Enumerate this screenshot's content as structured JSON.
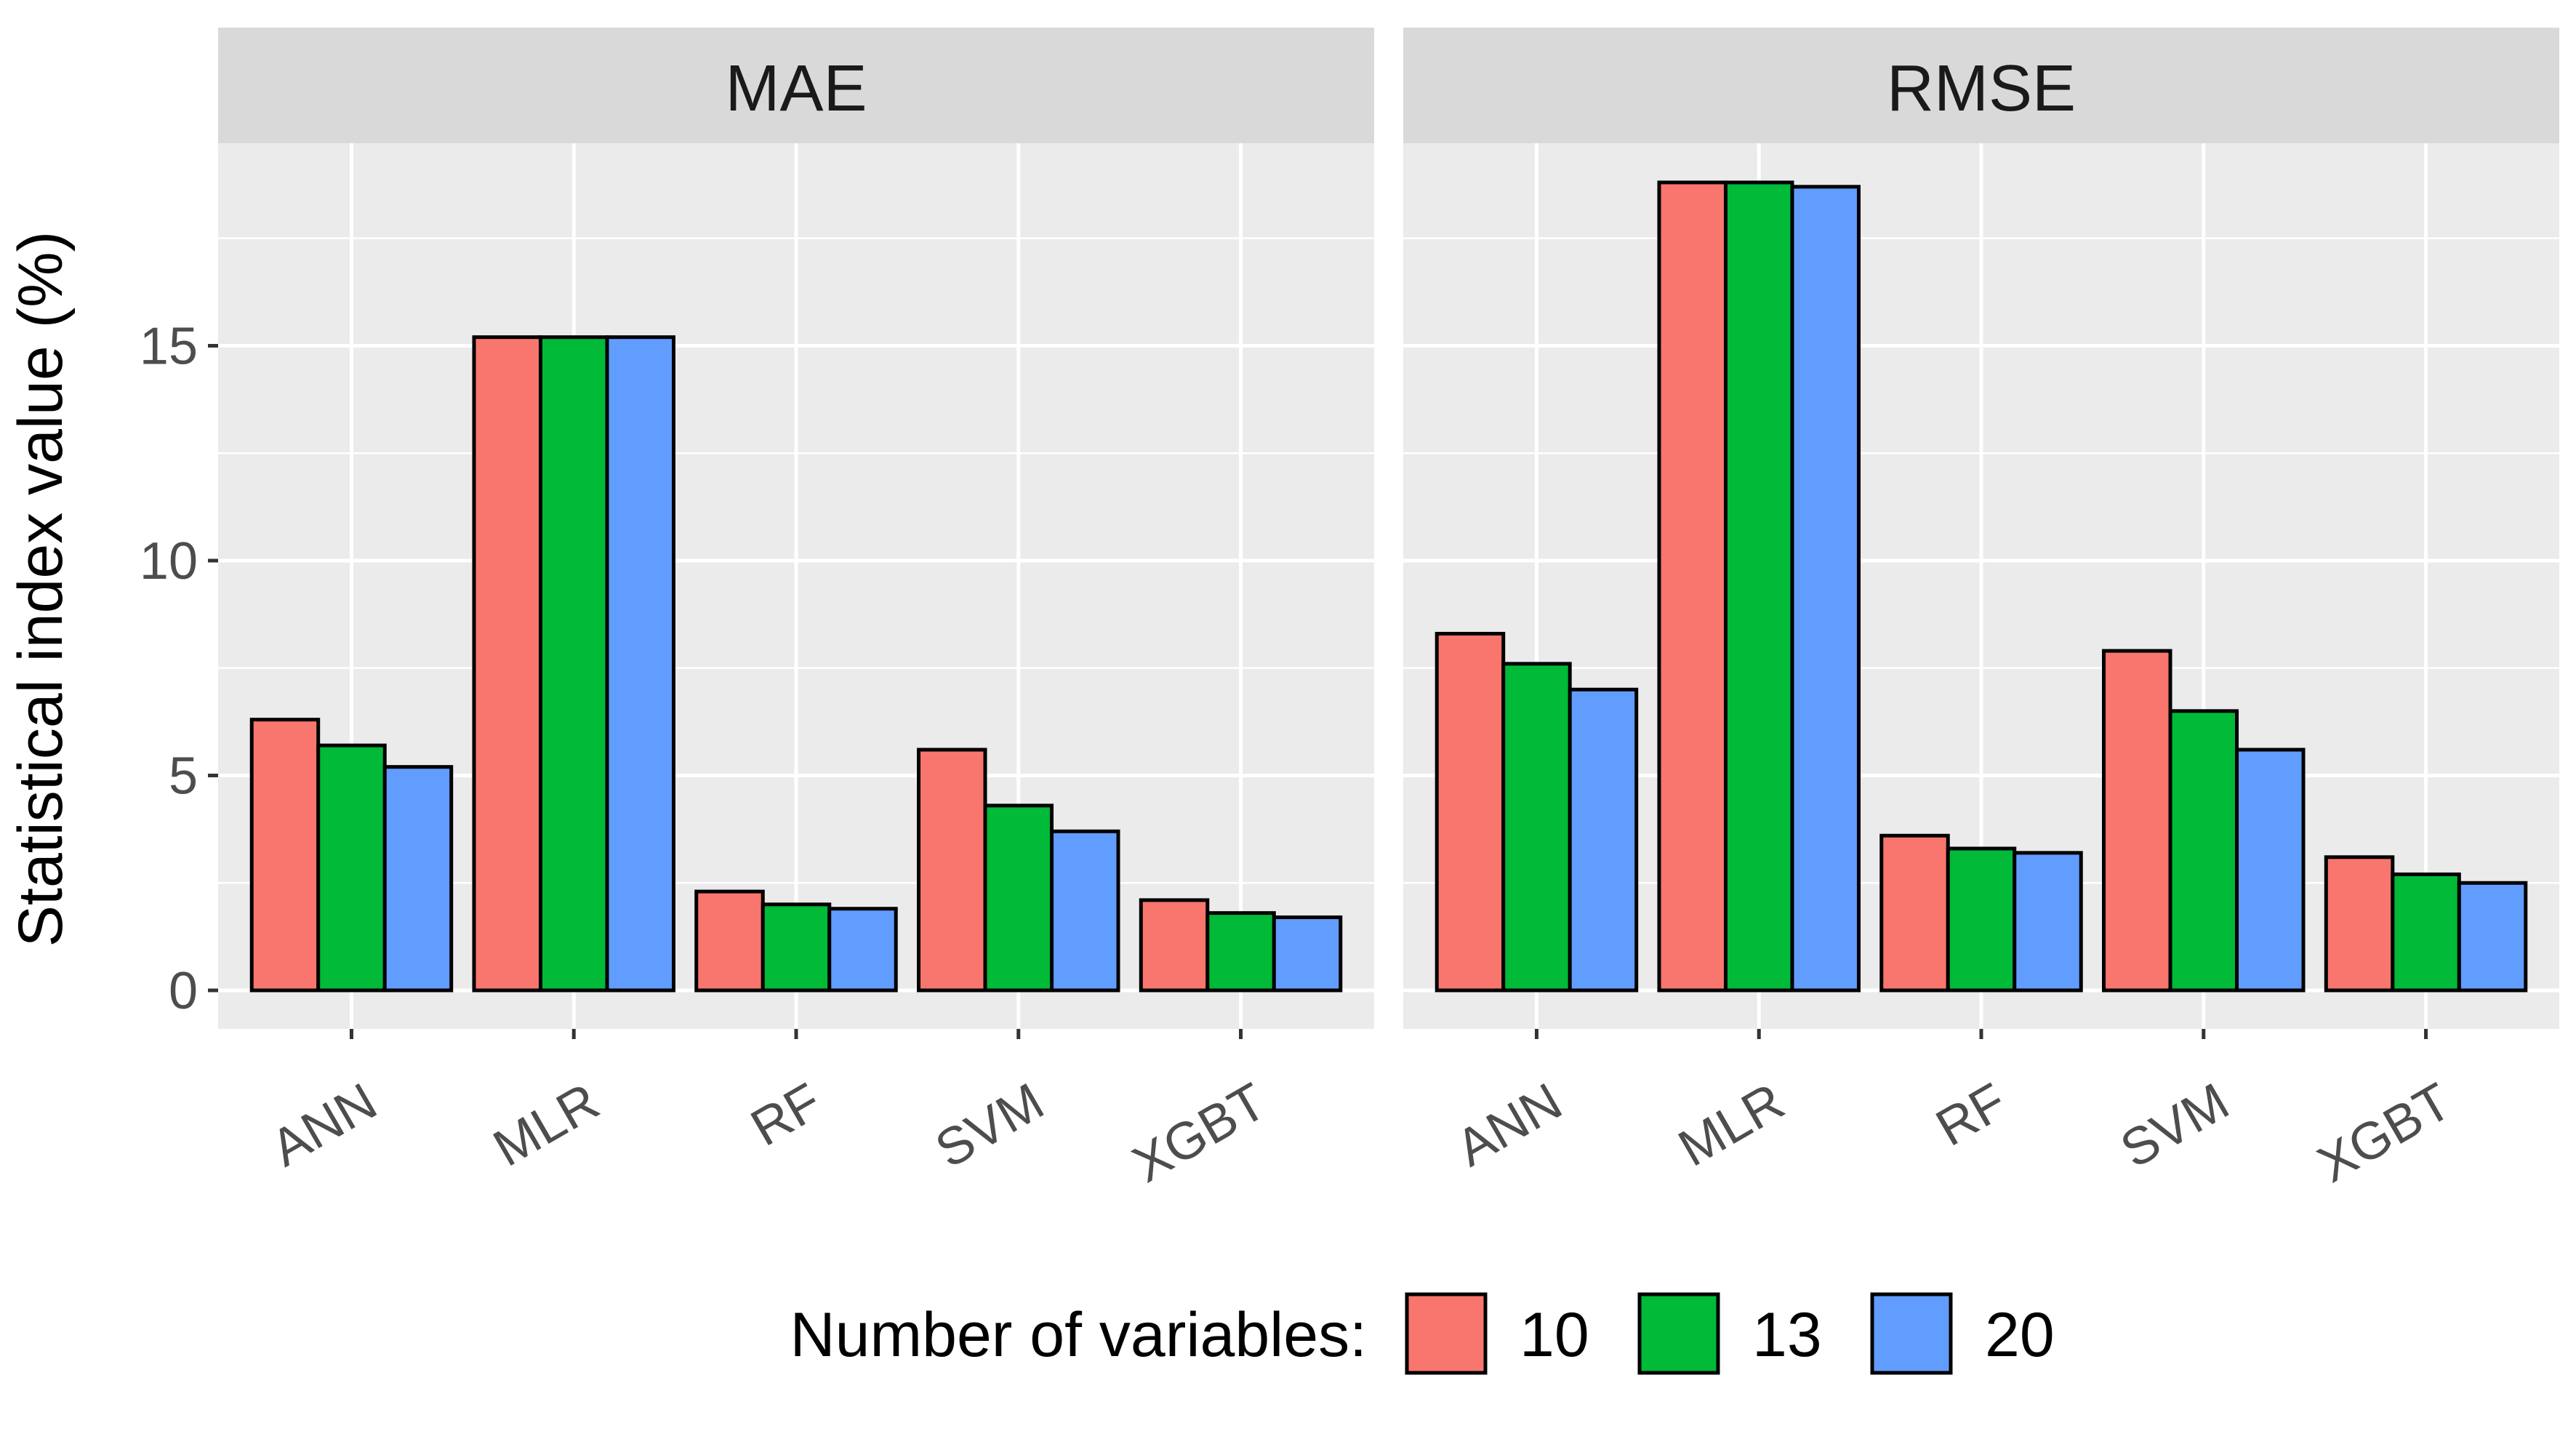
{
  "chart_data": {
    "type": "bar",
    "ylabel": "Statistical index value (%)",
    "ylim": [
      0,
      20
    ],
    "yticks": [
      0,
      5,
      10,
      15
    ],
    "grid": true,
    "legend_position": "bottom",
    "legend_title": "Number of variables:",
    "categories": [
      "ANN",
      "MLR",
      "RF",
      "SVM",
      "XGBT"
    ],
    "series_colors": {
      "10": "#F8766D",
      "13": "#00BA38",
      "20": "#619CFF"
    },
    "panels": [
      {
        "title": "MAE",
        "series": [
          {
            "name": "10",
            "values": [
              6.3,
              15.2,
              2.3,
              5.6,
              2.1
            ]
          },
          {
            "name": "13",
            "values": [
              5.7,
              15.2,
              2.0,
              4.3,
              1.8
            ]
          },
          {
            "name": "20",
            "values": [
              5.2,
              15.2,
              1.9,
              3.7,
              1.7
            ]
          }
        ]
      },
      {
        "title": "RMSE",
        "series": [
          {
            "name": "10",
            "values": [
              8.3,
              18.8,
              3.6,
              7.9,
              3.1
            ]
          },
          {
            "name": "13",
            "values": [
              7.6,
              18.8,
              3.3,
              6.5,
              2.7
            ]
          },
          {
            "name": "20",
            "values": [
              7.0,
              18.7,
              3.2,
              5.6,
              2.5
            ]
          }
        ]
      }
    ]
  }
}
